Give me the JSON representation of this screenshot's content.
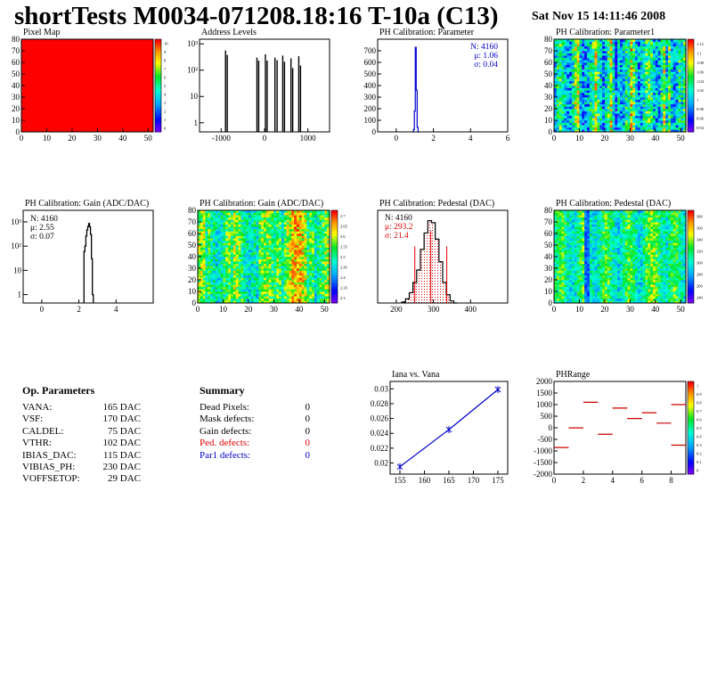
{
  "header": {
    "title": "shortTests M0034-071208.18:16 T-10a (C13)",
    "date": "Sat Nov 15 14:11:46 2008"
  },
  "colors": {
    "blue": "#0000cc",
    "red": "#e00000",
    "hist_line": "#000000"
  },
  "chart_data": [
    {
      "id": "pixel-map",
      "type": "heatmap",
      "title": "Pixel Map",
      "xlim": [
        0,
        52
      ],
      "ylim": [
        0,
        80
      ],
      "xticks": [
        0,
        10,
        20,
        30,
        40,
        50
      ],
      "yticks": [
        0,
        10,
        20,
        30,
        40,
        50,
        60,
        70,
        80
      ],
      "fill": "uniform-max",
      "zticks": [
        "0",
        "1",
        "2",
        "3",
        "4",
        "5",
        "6",
        "7",
        "8",
        "9",
        "10"
      ]
    },
    {
      "id": "address-levels",
      "type": "bar",
      "title": "Address Levels",
      "log_y": true,
      "xlim": [
        -1500,
        1500
      ],
      "xticks": [
        "-1000",
        "0",
        "1000"
      ],
      "yticks": [
        {
          "v": 1,
          "label": "1"
        },
        {
          "v": 10,
          "label": "10"
        },
        {
          "v": 100,
          "label": "10²"
        },
        {
          "v": 1000,
          "label": "10³"
        }
      ],
      "ylim": [
        0.45,
        1500
      ],
      "peaks": [
        {
          "x": -900,
          "y": 560
        },
        {
          "x": -860,
          "y": 380
        },
        {
          "x": -175,
          "y": 300
        },
        {
          "x": -135,
          "y": 230
        },
        {
          "x": 20,
          "y": 400
        },
        {
          "x": 60,
          "y": 230
        },
        {
          "x": 240,
          "y": 300
        },
        {
          "x": 290,
          "y": 240
        },
        {
          "x": 420,
          "y": 360
        },
        {
          "x": 460,
          "y": 210
        },
        {
          "x": 610,
          "y": 280
        },
        {
          "x": 650,
          "y": 120
        },
        {
          "x": 790,
          "y": 340
        },
        {
          "x": 830,
          "y": 150
        }
      ]
    },
    {
      "id": "ph-cal-parameter",
      "type": "bar",
      "title": "PH Calibration: Parameter",
      "xlim": [
        -1,
        6
      ],
      "ylim": [
        0,
        800
      ],
      "xticks": [
        "0",
        "2",
        "4",
        "6"
      ],
      "yticks": [
        "0",
        "100",
        "200",
        "300",
        "400",
        "500",
        "600",
        "700"
      ],
      "stats": [
        {
          "label": "N: 4160",
          "color": "blue"
        },
        {
          "label": "μ: 1.06",
          "color": "blue"
        },
        {
          "label": "σ: 0.04",
          "color": "blue"
        }
      ],
      "bins": [
        [
          0.9,
          0
        ],
        [
          0.95,
          20
        ],
        [
          1.0,
          180
        ],
        [
          1.05,
          730
        ],
        [
          1.1,
          360
        ],
        [
          1.15,
          40
        ],
        [
          1.2,
          0
        ]
      ]
    },
    {
      "id": "ph-cal-parameter1",
      "type": "heatmap",
      "title": "PH Calibration: Parameter1",
      "xlim": [
        0,
        52
      ],
      "ylim": [
        0,
        80
      ],
      "xticks": [
        "0",
        "10",
        "20",
        "30",
        "40",
        "50"
      ],
      "yticks": [
        "0",
        "10",
        "20",
        "30",
        "40",
        "50",
        "60",
        "70",
        "80"
      ],
      "zticks": [
        "0.94",
        "0.96",
        "0.98",
        "1",
        "1.02",
        "1.04",
        "1.06",
        "1.08",
        "1.1",
        "1.12"
      ],
      "zlim": [
        0.92,
        1.13
      ]
    },
    {
      "id": "ph-cal-gain-hist",
      "type": "bar",
      "title": "PH Calibration: Gain (ADC/DAC)",
      "log_y": true,
      "xlim": [
        -1,
        6
      ],
      "ylim": [
        0.45,
        3000
      ],
      "xticks": [
        "0",
        "2",
        "4"
      ],
      "yticks": [
        {
          "v": 1,
          "label": "1"
        },
        {
          "v": 10,
          "label": "10"
        },
        {
          "v": 100,
          "label": "10²"
        },
        {
          "v": 1000,
          "label": "10³"
        }
      ],
      "stats": [
        {
          "label": "N: 4160",
          "color": "hist_line"
        },
        {
          "label": "μ: 2.55",
          "color": "hist_line"
        },
        {
          "label": "σ: 0.07",
          "color": "hist_line"
        }
      ],
      "bins": [
        [
          2.3,
          60
        ],
        [
          2.35,
          100
        ],
        [
          2.4,
          260
        ],
        [
          2.45,
          460
        ],
        [
          2.5,
          640
        ],
        [
          2.55,
          860
        ],
        [
          2.6,
          620
        ],
        [
          2.65,
          300
        ],
        [
          2.7,
          30
        ],
        [
          2.75,
          1
        ]
      ]
    },
    {
      "id": "ph-cal-gain-map",
      "type": "heatmap",
      "title": "PH Calibration: Gain (ADC/DAC)",
      "xlim": [
        0,
        52
      ],
      "ylim": [
        0,
        80
      ],
      "xticks": [
        "0",
        "10",
        "20",
        "30",
        "40",
        "50"
      ],
      "yticks": [
        "0",
        "10",
        "20",
        "30",
        "40",
        "50",
        "60",
        "70",
        "80"
      ],
      "zticks": [
        "2.3",
        "2.35",
        "2.4",
        "2.45",
        "2.5",
        "2.55",
        "2.6",
        "2.65",
        "2.7"
      ],
      "zlim": [
        2.27,
        2.72
      ]
    },
    {
      "id": "ph-cal-pedestal-hist",
      "type": "bar",
      "title": "PH Calibration: Pedestal (DAC)",
      "xlim": [
        150,
        500
      ],
      "ylim": [
        0,
        90
      ],
      "xticks": [
        "200",
        "300",
        "400"
      ],
      "yticks": [],
      "stats": [
        {
          "label": "N: 4160",
          "color": "hist_line"
        },
        {
          "label": "μ: 293.2",
          "color": "red"
        },
        {
          "label": "σ: 21.4",
          "color": "red"
        }
      ],
      "cut_lines": [
        {
          "x": 250,
          "y": 55
        },
        {
          "x": 336,
          "y": 55
        }
      ],
      "mean_line": {
        "x": 293,
        "y": 70
      },
      "bins": [
        [
          220,
          1
        ],
        [
          230,
          4
        ],
        [
          240,
          10
        ],
        [
          250,
          20
        ],
        [
          260,
          32
        ],
        [
          270,
          52
        ],
        [
          280,
          68
        ],
        [
          290,
          80
        ],
        [
          300,
          78
        ],
        [
          310,
          62
        ],
        [
          320,
          40
        ],
        [
          330,
          20
        ],
        [
          340,
          8
        ],
        [
          350,
          2
        ],
        [
          360,
          0
        ]
      ]
    },
    {
      "id": "ph-cal-pedestal-map",
      "type": "heatmap",
      "title": "PH Calibration: Pedestal (DAC)",
      "xlim": [
        0,
        52
      ],
      "ylim": [
        0,
        80
      ],
      "xticks": [
        "0",
        "10",
        "20",
        "30",
        "40",
        "50"
      ],
      "yticks": [
        "0",
        "10",
        "20",
        "30",
        "40",
        "50",
        "60",
        "70",
        "80"
      ],
      "zticks": [
        "240",
        "260",
        "280",
        "300",
        "320",
        "340",
        "360",
        "380"
      ],
      "zlim": [
        230,
        390
      ]
    },
    {
      "id": "iana-vs-vana",
      "type": "line",
      "title": "Iana vs. Vana",
      "xlim": [
        153,
        177
      ],
      "ylim": [
        0.0185,
        0.031
      ],
      "xticks": [
        "155",
        "160",
        "165",
        "170",
        "175"
      ],
      "yticks": [
        "0.02",
        "0.022",
        "0.024",
        "0.026",
        "0.028",
        "0.03"
      ],
      "x": [
        155,
        165,
        175
      ],
      "y": [
        0.0195,
        0.0245,
        0.0299
      ]
    },
    {
      "id": "ph-range",
      "type": "heatmap",
      "title": "PHRange",
      "xlim": [
        0,
        9
      ],
      "ylim": [
        -2000,
        2000
      ],
      "xticks": [
        "0",
        "2",
        "4",
        "6",
        "8"
      ],
      "yticks": [
        "2000",
        "1500",
        "1000",
        "500",
        "0",
        "-500",
        "-1000",
        "-1500",
        "-2000"
      ],
      "zticks": [
        "0",
        "0.1",
        "0.2",
        "0.3",
        "0.4",
        "0.5",
        "0.6",
        "0.7",
        "0.8",
        "0.9",
        "1"
      ],
      "segments": [
        [
          0,
          -850
        ],
        [
          1,
          -5
        ],
        [
          2,
          1100
        ],
        [
          3,
          -280
        ],
        [
          4,
          850
        ],
        [
          5,
          400
        ],
        [
          6,
          650
        ],
        [
          7,
          200
        ],
        [
          8,
          1000
        ],
        [
          8,
          -750
        ]
      ]
    }
  ],
  "op_params": {
    "title": "Op. Parameters",
    "rows": [
      {
        "label": "VANA:",
        "value": "165 DAC"
      },
      {
        "label": "VSF:",
        "value": "170 DAC"
      },
      {
        "label": "CALDEL:",
        "value": "75 DAC"
      },
      {
        "label": "VTHR:",
        "value": "102 DAC"
      },
      {
        "label": "IBIAS_DAC:",
        "value": "115 DAC"
      },
      {
        "label": "VIBIAS_PH:",
        "value": "230 DAC"
      },
      {
        "label": "VOFFSETOP:",
        "value": "29 DAC"
      }
    ]
  },
  "summary": {
    "title": "Summary",
    "rows": [
      {
        "label": "Dead Pixels:",
        "value": "0",
        "color": "#000000"
      },
      {
        "label": "Mask defects:",
        "value": "0",
        "color": "#000000"
      },
      {
        "label": "Gain defects:",
        "value": "0",
        "color": "#000000"
      },
      {
        "label": "Ped. defects:",
        "value": "0",
        "color": "#e00000"
      },
      {
        "label": "Par1 defects:",
        "value": "0",
        "color": "#0000cc"
      }
    ]
  }
}
